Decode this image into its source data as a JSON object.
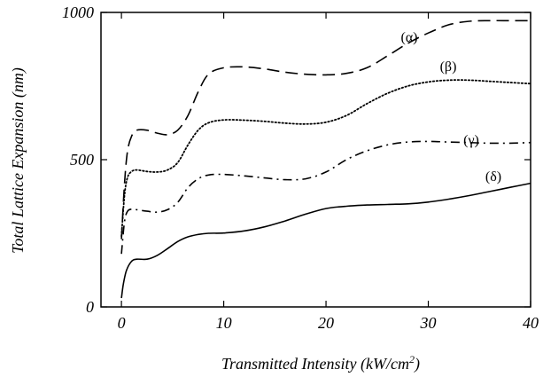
{
  "chart_data": {
    "type": "line",
    "title": "",
    "xlabel": "Transmitted Intensity (kW/cm",
    "xlabel_superscript": "2",
    "xlabel_suffix": ")",
    "ylabel": "Total  Lattice Expansion  (nm)",
    "xlim": [
      -2,
      40
    ],
    "ylim": [
      0,
      1000
    ],
    "x_ticks": [
      0,
      10,
      20,
      30,
      40
    ],
    "y_ticks": [
      0,
      500,
      1000
    ],
    "x_tick_labels": [
      "0",
      "10",
      "20",
      "30",
      "40"
    ],
    "y_tick_labels": [
      "0",
      "500",
      "1000"
    ],
    "grid": false,
    "legend": "none",
    "series": [
      {
        "name": "(α)",
        "style": "dashed",
        "x": [
          0,
          0.3,
          0.6,
          1,
          1.5,
          2.5,
          3.5,
          4.5,
          5.5,
          6.5,
          7.5,
          8.5,
          10,
          12,
          14,
          16,
          18,
          20,
          22,
          24,
          26,
          28,
          30,
          32,
          34,
          36,
          38,
          40
        ],
        "y": [
          230,
          420,
          530,
          580,
          600,
          600,
          590,
          585,
          600,
          650,
          730,
          790,
          812,
          815,
          808,
          797,
          790,
          788,
          793,
          812,
          852,
          895,
          930,
          958,
          970,
          972,
          972,
          972
        ]
      },
      {
        "name": "(β)",
        "style": "dotted",
        "x": [
          0,
          0.3,
          0.6,
          1,
          1.5,
          2.5,
          3.5,
          4.5,
          5.5,
          6.5,
          7.5,
          8.5,
          10,
          12,
          14,
          16,
          18,
          20,
          22,
          24,
          26,
          28,
          30,
          32,
          34,
          36,
          38,
          40
        ],
        "y": [
          240,
          380,
          440,
          460,
          465,
          460,
          458,
          465,
          490,
          550,
          600,
          625,
          635,
          634,
          630,
          624,
          621,
          627,
          650,
          690,
          725,
          750,
          764,
          770,
          770,
          766,
          762,
          758
        ]
      },
      {
        "name": "(γ)",
        "style": "dash-dot",
        "x": [
          0,
          0.3,
          0.6,
          1,
          1.5,
          2.5,
          3.5,
          4.5,
          5.5,
          6.5,
          7.5,
          8.5,
          10,
          12,
          14,
          16,
          18,
          20,
          22,
          24,
          26,
          28,
          30,
          32,
          34,
          36,
          38,
          40
        ],
        "y": [
          180,
          290,
          325,
          332,
          330,
          325,
          322,
          330,
          355,
          405,
          435,
          448,
          450,
          445,
          438,
          432,
          435,
          458,
          500,
          530,
          550,
          560,
          562,
          560,
          558,
          556,
          556,
          558
        ]
      },
      {
        "name": "(δ)",
        "style": "solid",
        "x": [
          0,
          0.2,
          0.5,
          1,
          1.5,
          2.5,
          3.5,
          4.5,
          5.5,
          6.5,
          7.5,
          8.5,
          10,
          12,
          14,
          16,
          18,
          20,
          22,
          24,
          26,
          28,
          30,
          32,
          34,
          36,
          38,
          40
        ],
        "y": [
          30,
          80,
          125,
          155,
          162,
          162,
          175,
          198,
          222,
          238,
          246,
          250,
          251,
          258,
          272,
          292,
          315,
          334,
          342,
          346,
          348,
          350,
          356,
          366,
          378,
          392,
          406,
          420
        ]
      }
    ]
  }
}
